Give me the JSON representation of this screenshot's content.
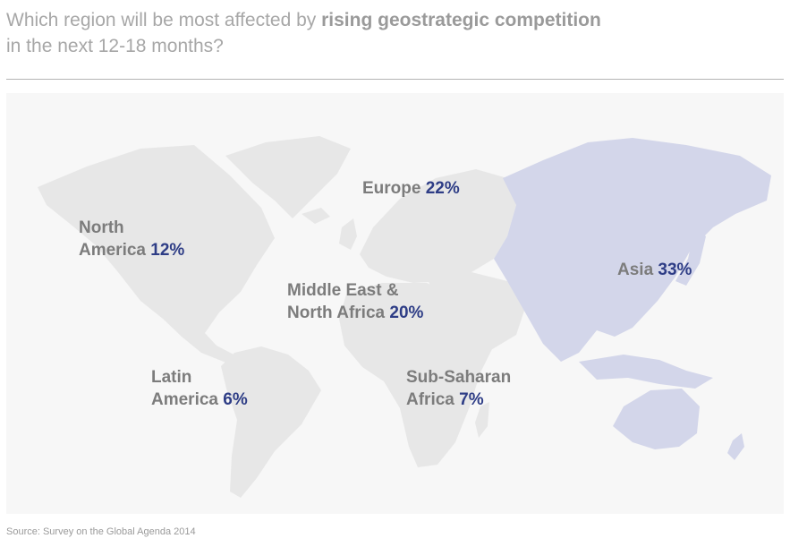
{
  "title": {
    "prefix": "Which region will be most affected by ",
    "emphasis": "rising geostrategic competition",
    "suffix": "in the next 12-18 months?"
  },
  "regions": {
    "europe": {
      "name": "Europe",
      "value": "22%"
    },
    "north_america": {
      "name_line1": "North",
      "name_line2": "America",
      "value": "12%"
    },
    "asia": {
      "name": "Asia",
      "value": "33%"
    },
    "mena": {
      "name_line1": "Middle East &",
      "name_line2": "North Africa",
      "value": "20%"
    },
    "latin_america": {
      "name_line1": "Latin",
      "name_line2": "America",
      "value": "6%"
    },
    "sub_saharan": {
      "name_line1": "Sub-Saharan",
      "name_line2": "Africa",
      "value": "7%"
    }
  },
  "colors": {
    "land": "#e7e7e7",
    "highlight": "#d3d6ea",
    "label": "#7c7c7c",
    "value": "#2e3d86"
  },
  "source": "Source: Survey on the Global Agenda 2014"
}
